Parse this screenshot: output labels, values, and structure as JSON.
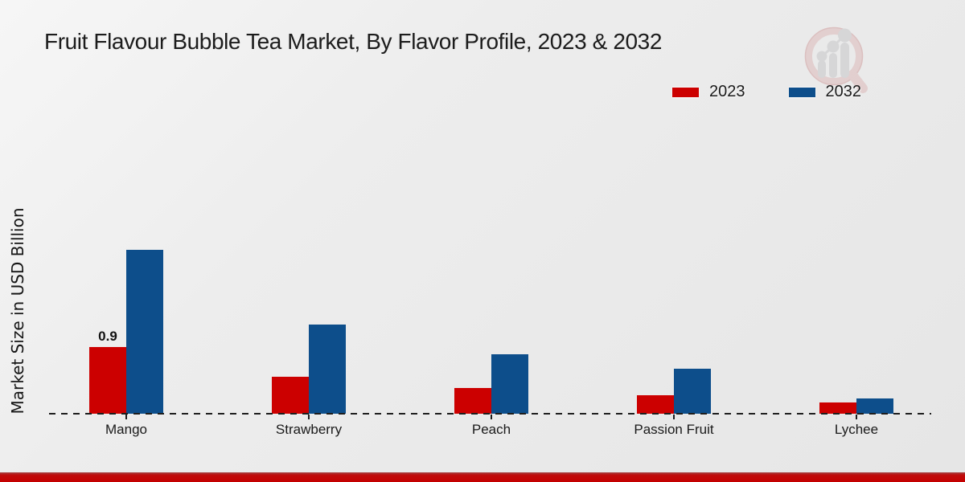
{
  "page": {
    "title": "Fruit Flavour Bubble Tea Market, By Flavor Profile, 2023 & 2032"
  },
  "legend": {
    "items": [
      {
        "label": "2023",
        "color": "#cc0000"
      },
      {
        "label": "2032",
        "color": "#0d4e8b"
      }
    ]
  },
  "icons": {
    "watermark": "magnifier-growth-chart-logo"
  },
  "chart_data": {
    "type": "bar",
    "title": "Fruit Flavour Bubble Tea Market, By Flavor Profile, 2023 & 2032",
    "xlabel": "",
    "ylabel": "Market Size in USD Billion",
    "categories": [
      "Mango",
      "Strawberry",
      "Peach",
      "Passion Fruit",
      "Lychee"
    ],
    "series": [
      {
        "name": "2023",
        "color": "#cc0000",
        "values": [
          0.9,
          0.5,
          0.35,
          0.25,
          0.15
        ]
      },
      {
        "name": "2032",
        "color": "#0d4e8b",
        "values": [
          2.2,
          1.2,
          0.8,
          0.6,
          0.2
        ]
      }
    ],
    "ylim": [
      0,
      2.5
    ],
    "grid": false,
    "y_axis_ticks_visible": false,
    "baseline_style": "dashed",
    "legend_position": "top-right",
    "bar_labels": [
      {
        "series": "2023",
        "category": "Mango",
        "text": "0.9"
      }
    ]
  },
  "footer": {
    "bar_color": "#c40000"
  }
}
